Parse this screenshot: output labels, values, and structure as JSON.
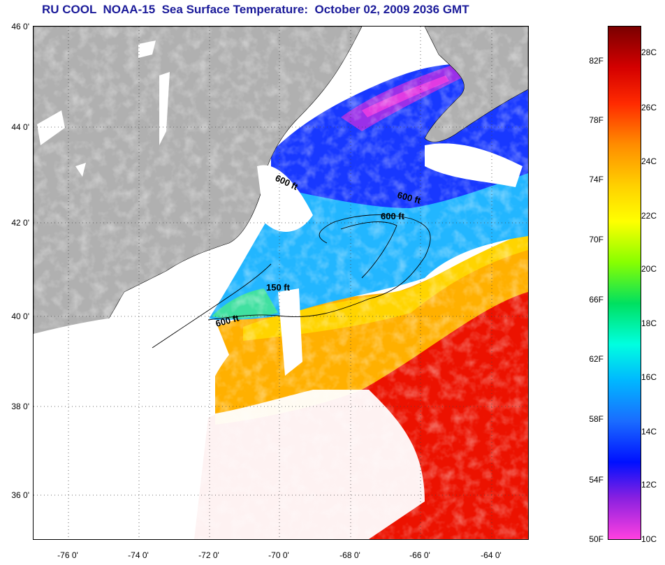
{
  "title": "RU COOL  NOAA-15  Sea Surface Temperature:  October 02, 2009 2036 GMT",
  "lat_labels": [
    "46 0'",
    "44 0'",
    "42 0'",
    "40 0'",
    "38 0'",
    "36 0'"
  ],
  "lon_labels": [
    "-76 0'",
    "-74 0'",
    "-72 0'",
    "-70 0'",
    "-68 0'",
    "-66 0'",
    "-64 0'"
  ],
  "contour_labels": [
    "600 ft",
    "600 ft",
    "600 ft",
    "150 ft",
    "600 ft"
  ],
  "colorbar": {
    "fahrenheit_labels": [
      "82F",
      "78F",
      "74F",
      "70F",
      "66F",
      "62F",
      "58F",
      "54F",
      "50F"
    ],
    "celsius_labels": [
      "28C",
      "26C",
      "24C",
      "22C",
      "20C",
      "18C",
      "16C",
      "14C",
      "12C",
      "10C"
    ],
    "colors": [
      "#7a0000",
      "#d40000",
      "#ff2a00",
      "#ff8c00",
      "#ffd000",
      "#ffff00",
      "#88ff00",
      "#00e060",
      "#00ffe0",
      "#00b8ff",
      "#1a6cff",
      "#0010ff",
      "#8a20e0",
      "#ff40e0"
    ]
  },
  "colors": {
    "land": "#b0b0b0",
    "cloud": "#ffffff",
    "title": "#1a1a99"
  }
}
